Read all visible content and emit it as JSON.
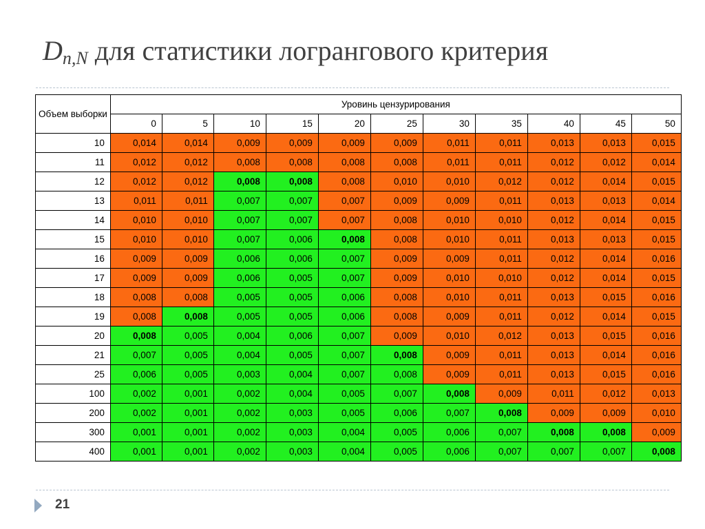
{
  "slide": {
    "title_symbol": "D",
    "title_subscript": "n,N",
    "title_text": " для статистики логрангового критерия",
    "page_number": "21"
  },
  "colors": {
    "orange": "#fb6a12",
    "green": "#22f020"
  },
  "table": {
    "corner_label": "Объем выборки",
    "group_header": "Уровинь цензурирования",
    "columns": [
      "0",
      "5",
      "10",
      "15",
      "20",
      "25",
      "30",
      "35",
      "40",
      "45",
      "50"
    ],
    "rows": [
      {
        "n": "10",
        "cells": [
          {
            "v": "0,014",
            "c": "o"
          },
          {
            "v": "0,014",
            "c": "o"
          },
          {
            "v": "0,009",
            "c": "o"
          },
          {
            "v": "0,009",
            "c": "o"
          },
          {
            "v": "0,009",
            "c": "o"
          },
          {
            "v": "0,009",
            "c": "o"
          },
          {
            "v": "0,011",
            "c": "o"
          },
          {
            "v": "0,011",
            "c": "o"
          },
          {
            "v": "0,013",
            "c": "o"
          },
          {
            "v": "0,013",
            "c": "o"
          },
          {
            "v": "0,015",
            "c": "o"
          }
        ]
      },
      {
        "n": "11",
        "cells": [
          {
            "v": "0,012",
            "c": "o"
          },
          {
            "v": "0,012",
            "c": "o"
          },
          {
            "v": "0,008",
            "c": "o"
          },
          {
            "v": "0,008",
            "c": "o"
          },
          {
            "v": "0,008",
            "c": "o"
          },
          {
            "v": "0,008",
            "c": "o"
          },
          {
            "v": "0,011",
            "c": "o"
          },
          {
            "v": "0,011",
            "c": "o"
          },
          {
            "v": "0,012",
            "c": "o"
          },
          {
            "v": "0,012",
            "c": "o"
          },
          {
            "v": "0,014",
            "c": "o"
          }
        ]
      },
      {
        "n": "12",
        "cells": [
          {
            "v": "0,012",
            "c": "o"
          },
          {
            "v": "0,012",
            "c": "o"
          },
          {
            "v": "0,008",
            "c": "g",
            "b": true
          },
          {
            "v": "0,008",
            "c": "g",
            "b": true
          },
          {
            "v": "0,008",
            "c": "o"
          },
          {
            "v": "0,010",
            "c": "o"
          },
          {
            "v": "0,010",
            "c": "o"
          },
          {
            "v": "0,012",
            "c": "o"
          },
          {
            "v": "0,012",
            "c": "o"
          },
          {
            "v": "0,014",
            "c": "o"
          },
          {
            "v": "0,015",
            "c": "o"
          }
        ]
      },
      {
        "n": "13",
        "cells": [
          {
            "v": "0,011",
            "c": "o"
          },
          {
            "v": "0,011",
            "c": "o"
          },
          {
            "v": "0,007",
            "c": "g"
          },
          {
            "v": "0,007",
            "c": "g"
          },
          {
            "v": "0,007",
            "c": "o"
          },
          {
            "v": "0,009",
            "c": "o"
          },
          {
            "v": "0,009",
            "c": "o"
          },
          {
            "v": "0,011",
            "c": "o"
          },
          {
            "v": "0,013",
            "c": "o"
          },
          {
            "v": "0,013",
            "c": "o"
          },
          {
            "v": "0,014",
            "c": "o"
          }
        ]
      },
      {
        "n": "14",
        "cells": [
          {
            "v": "0,010",
            "c": "o"
          },
          {
            "v": "0,010",
            "c": "o"
          },
          {
            "v": "0,007",
            "c": "g"
          },
          {
            "v": "0,007",
            "c": "g"
          },
          {
            "v": "0,007",
            "c": "o"
          },
          {
            "v": "0,008",
            "c": "o"
          },
          {
            "v": "0,010",
            "c": "o"
          },
          {
            "v": "0,010",
            "c": "o"
          },
          {
            "v": "0,012",
            "c": "o"
          },
          {
            "v": "0,014",
            "c": "o"
          },
          {
            "v": "0,015",
            "c": "o"
          }
        ]
      },
      {
        "n": "15",
        "cells": [
          {
            "v": "0,010",
            "c": "o"
          },
          {
            "v": "0,010",
            "c": "o"
          },
          {
            "v": "0,007",
            "c": "g"
          },
          {
            "v": "0,006",
            "c": "g"
          },
          {
            "v": "0,008",
            "c": "g",
            "b": true
          },
          {
            "v": "0,008",
            "c": "o"
          },
          {
            "v": "0,010",
            "c": "o"
          },
          {
            "v": "0,011",
            "c": "o"
          },
          {
            "v": "0,013",
            "c": "o"
          },
          {
            "v": "0,013",
            "c": "o"
          },
          {
            "v": "0,015",
            "c": "o"
          }
        ]
      },
      {
        "n": "16",
        "cells": [
          {
            "v": "0,009",
            "c": "o"
          },
          {
            "v": "0,009",
            "c": "o"
          },
          {
            "v": "0,006",
            "c": "g"
          },
          {
            "v": "0,006",
            "c": "g"
          },
          {
            "v": "0,007",
            "c": "g"
          },
          {
            "v": "0,009",
            "c": "o"
          },
          {
            "v": "0,009",
            "c": "o"
          },
          {
            "v": "0,011",
            "c": "o"
          },
          {
            "v": "0,012",
            "c": "o"
          },
          {
            "v": "0,014",
            "c": "o"
          },
          {
            "v": "0,016",
            "c": "o"
          }
        ]
      },
      {
        "n": "17",
        "cells": [
          {
            "v": "0,009",
            "c": "o"
          },
          {
            "v": "0,009",
            "c": "o"
          },
          {
            "v": "0,006",
            "c": "g"
          },
          {
            "v": "0,005",
            "c": "g"
          },
          {
            "v": "0,007",
            "c": "g"
          },
          {
            "v": "0,009",
            "c": "o"
          },
          {
            "v": "0,010",
            "c": "o"
          },
          {
            "v": "0,010",
            "c": "o"
          },
          {
            "v": "0,012",
            "c": "o"
          },
          {
            "v": "0,014",
            "c": "o"
          },
          {
            "v": "0,015",
            "c": "o"
          }
        ]
      },
      {
        "n": "18",
        "cells": [
          {
            "v": "0,008",
            "c": "o"
          },
          {
            "v": "0,008",
            "c": "o"
          },
          {
            "v": "0,005",
            "c": "g"
          },
          {
            "v": "0,005",
            "c": "g"
          },
          {
            "v": "0,006",
            "c": "g"
          },
          {
            "v": "0,008",
            "c": "o"
          },
          {
            "v": "0,010",
            "c": "o"
          },
          {
            "v": "0,011",
            "c": "o"
          },
          {
            "v": "0,013",
            "c": "o"
          },
          {
            "v": "0,015",
            "c": "o"
          },
          {
            "v": "0,016",
            "c": "o"
          }
        ]
      },
      {
        "n": "19",
        "cells": [
          {
            "v": "0,008",
            "c": "o"
          },
          {
            "v": "0,008",
            "c": "g",
            "b": true
          },
          {
            "v": "0,005",
            "c": "g"
          },
          {
            "v": "0,005",
            "c": "g"
          },
          {
            "v": "0,006",
            "c": "g"
          },
          {
            "v": "0,008",
            "c": "o"
          },
          {
            "v": "0,009",
            "c": "o"
          },
          {
            "v": "0,011",
            "c": "o"
          },
          {
            "v": "0,012",
            "c": "o"
          },
          {
            "v": "0,014",
            "c": "o"
          },
          {
            "v": "0,015",
            "c": "o"
          }
        ]
      },
      {
        "n": "20",
        "cells": [
          {
            "v": "0,008",
            "c": "g",
            "b": true
          },
          {
            "v": "0,005",
            "c": "g"
          },
          {
            "v": "0,004",
            "c": "g"
          },
          {
            "v": "0,006",
            "c": "g"
          },
          {
            "v": "0,007",
            "c": "g"
          },
          {
            "v": "0,009",
            "c": "o"
          },
          {
            "v": "0,010",
            "c": "o"
          },
          {
            "v": "0,012",
            "c": "o"
          },
          {
            "v": "0,013",
            "c": "o"
          },
          {
            "v": "0,015",
            "c": "o"
          },
          {
            "v": "0,016",
            "c": "o"
          }
        ]
      },
      {
        "n": "21",
        "cells": [
          {
            "v": "0,007",
            "c": "g"
          },
          {
            "v": "0,005",
            "c": "g"
          },
          {
            "v": "0,004",
            "c": "g"
          },
          {
            "v": "0,005",
            "c": "g"
          },
          {
            "v": "0,007",
            "c": "g"
          },
          {
            "v": "0,008",
            "c": "g",
            "b": true
          },
          {
            "v": "0,009",
            "c": "o"
          },
          {
            "v": "0,011",
            "c": "o"
          },
          {
            "v": "0,013",
            "c": "o"
          },
          {
            "v": "0,014",
            "c": "o"
          },
          {
            "v": "0,016",
            "c": "o"
          }
        ]
      },
      {
        "n": "25",
        "cells": [
          {
            "v": "0,006",
            "c": "g"
          },
          {
            "v": "0,005",
            "c": "g"
          },
          {
            "v": "0,003",
            "c": "g"
          },
          {
            "v": "0,004",
            "c": "g"
          },
          {
            "v": "0,007",
            "c": "g"
          },
          {
            "v": "0,008",
            "c": "g"
          },
          {
            "v": "0,009",
            "c": "o"
          },
          {
            "v": "0,011",
            "c": "o"
          },
          {
            "v": "0,013",
            "c": "o"
          },
          {
            "v": "0,015",
            "c": "o"
          },
          {
            "v": "0,016",
            "c": "o"
          }
        ]
      },
      {
        "n": "100",
        "cells": [
          {
            "v": "0,002",
            "c": "g"
          },
          {
            "v": "0,001",
            "c": "g"
          },
          {
            "v": "0,002",
            "c": "g"
          },
          {
            "v": "0,004",
            "c": "g"
          },
          {
            "v": "0,005",
            "c": "g"
          },
          {
            "v": "0,007",
            "c": "g"
          },
          {
            "v": "0,008",
            "c": "g",
            "b": true
          },
          {
            "v": "0,009",
            "c": "o"
          },
          {
            "v": "0,011",
            "c": "o"
          },
          {
            "v": "0,012",
            "c": "o"
          },
          {
            "v": "0,013",
            "c": "o"
          }
        ]
      },
      {
        "n": "200",
        "cells": [
          {
            "v": "0,002",
            "c": "g"
          },
          {
            "v": "0,001",
            "c": "g"
          },
          {
            "v": "0,002",
            "c": "g"
          },
          {
            "v": "0,003",
            "c": "g"
          },
          {
            "v": "0,005",
            "c": "g"
          },
          {
            "v": "0,006",
            "c": "g"
          },
          {
            "v": "0,007",
            "c": "g"
          },
          {
            "v": "0,008",
            "c": "g",
            "b": true
          },
          {
            "v": "0,009",
            "c": "o"
          },
          {
            "v": "0,009",
            "c": "o"
          },
          {
            "v": "0,010",
            "c": "o"
          }
        ]
      },
      {
        "n": "300",
        "cells": [
          {
            "v": "0,001",
            "c": "g"
          },
          {
            "v": "0,001",
            "c": "g"
          },
          {
            "v": "0,002",
            "c": "g"
          },
          {
            "v": "0,003",
            "c": "g"
          },
          {
            "v": "0,004",
            "c": "g"
          },
          {
            "v": "0,005",
            "c": "g"
          },
          {
            "v": "0,006",
            "c": "g"
          },
          {
            "v": "0,007",
            "c": "g"
          },
          {
            "v": "0,008",
            "c": "g",
            "b": true
          },
          {
            "v": "0,008",
            "c": "g",
            "b": true
          },
          {
            "v": "0,009",
            "c": "o"
          }
        ]
      },
      {
        "n": "400",
        "cells": [
          {
            "v": "0,001",
            "c": "g"
          },
          {
            "v": "0,001",
            "c": "g"
          },
          {
            "v": "0,002",
            "c": "g"
          },
          {
            "v": "0,003",
            "c": "g"
          },
          {
            "v": "0,004",
            "c": "g"
          },
          {
            "v": "0,005",
            "c": "g"
          },
          {
            "v": "0,006",
            "c": "g"
          },
          {
            "v": "0,007",
            "c": "g"
          },
          {
            "v": "0,007",
            "c": "g"
          },
          {
            "v": "0,007",
            "c": "g"
          },
          {
            "v": "0,008",
            "c": "g",
            "b": true
          }
        ]
      }
    ]
  }
}
